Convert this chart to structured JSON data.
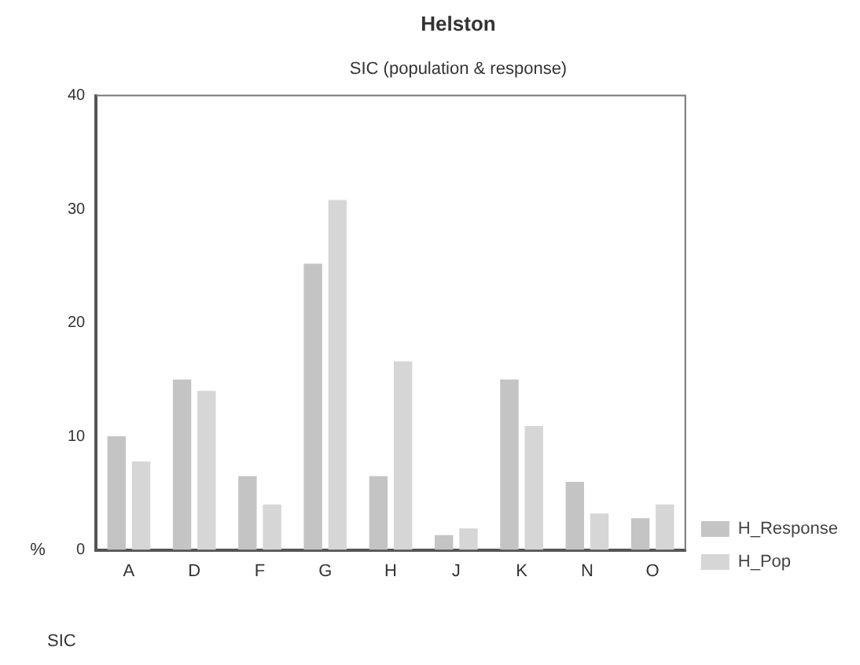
{
  "chart_data": {
    "type": "bar",
    "title": "Helston",
    "subtitle": "SIC (population & response)",
    "xlabel": "SIC",
    "ylabel": "%",
    "categories": [
      "A",
      "D",
      "F",
      "G",
      "H",
      "J",
      "K",
      "N",
      "O"
    ],
    "series": [
      {
        "name": "H_Response",
        "color": "#c4c4c4",
        "values": [
          10.0,
          15.0,
          6.5,
          25.2,
          6.5,
          1.3,
          15.0,
          6.0,
          2.8
        ]
      },
      {
        "name": "H_Pop",
        "color": "#d6d6d6",
        "values": [
          7.8,
          14.0,
          4.0,
          30.8,
          16.6,
          1.9,
          10.9,
          3.2,
          4.0
        ]
      }
    ],
    "ylim": [
      0,
      40
    ],
    "yticks": [
      0,
      10,
      20,
      30,
      40
    ],
    "grid": false,
    "legend": "bottom right"
  }
}
